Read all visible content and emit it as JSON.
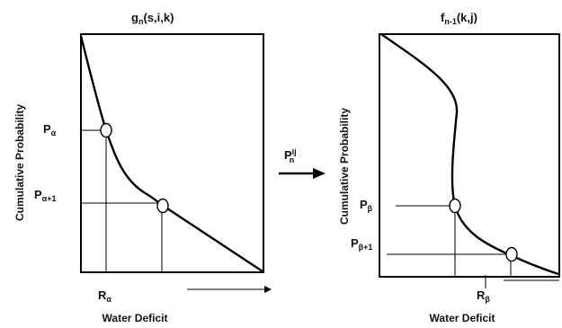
{
  "left_panel": {
    "title_main": "g",
    "title_sub": "n",
    "title_args": "(s,i,k)",
    "ylabel": "Cumulative Probability",
    "xlabel": "Water Deficit",
    "p_alpha_main": "P",
    "p_alpha_sub": "α",
    "p_alpha1_main": "P",
    "p_alpha1_sub": "α+1",
    "r_alpha_main": "R",
    "r_alpha_sub": "α"
  },
  "transition": {
    "label_main": "P",
    "label_sup": "ij",
    "label_sub": "n"
  },
  "right_panel": {
    "title_main": "f",
    "title_sub": "n-1",
    "title_args": "(k,j)",
    "ylabel": "Cumulative Probability",
    "xlabel": "Water Deficit",
    "p_beta_main": "P",
    "p_beta_sub": "β",
    "p_beta1_main": "P",
    "p_beta1_sub": "β+1",
    "r_beta_main": "R",
    "r_beta_sub": "β"
  }
}
